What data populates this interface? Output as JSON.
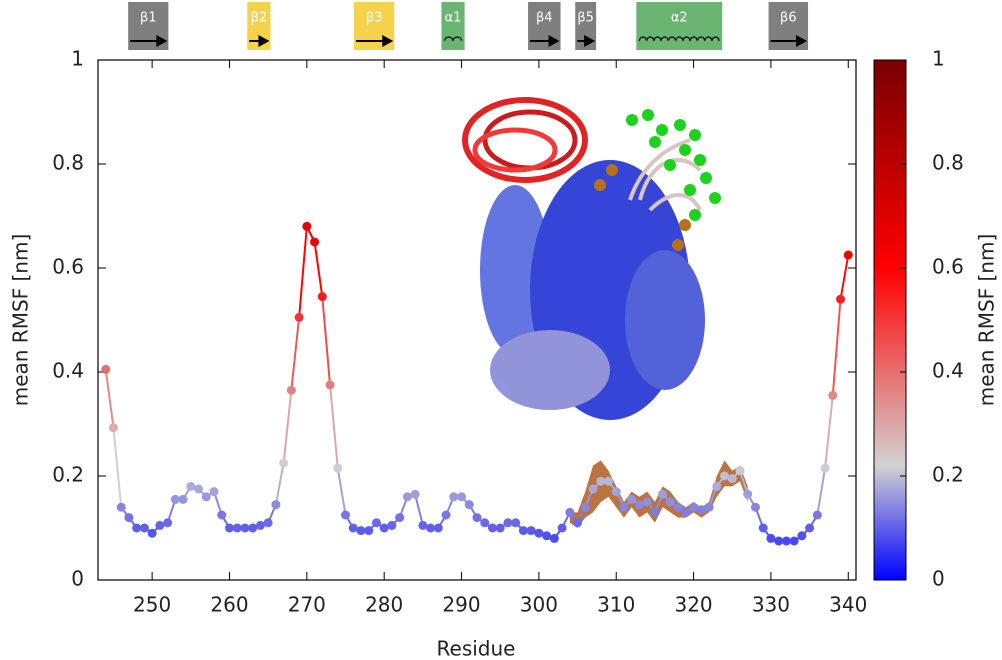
{
  "chart_data": {
    "type": "line",
    "xlabel": "Residue",
    "ylabel": "mean RMSF [nm]",
    "xlim": [
      243,
      341
    ],
    "ylim": [
      0,
      1
    ],
    "xticks": [
      250,
      260,
      270,
      280,
      290,
      300,
      310,
      320,
      330,
      340
    ],
    "yticks": [
      0,
      0.2,
      0.4,
      0.6,
      0.8,
      1
    ],
    "x": [
      244,
      245,
      246,
      247,
      248,
      249,
      250,
      251,
      252,
      253,
      254,
      255,
      256,
      257,
      258,
      259,
      260,
      261,
      262,
      263,
      264,
      265,
      266,
      267,
      268,
      269,
      270,
      271,
      272,
      273,
      274,
      275,
      276,
      277,
      278,
      279,
      280,
      281,
      282,
      283,
      284,
      285,
      286,
      287,
      288,
      289,
      290,
      291,
      292,
      293,
      294,
      295,
      296,
      297,
      298,
      299,
      300,
      301,
      302,
      303,
      304,
      305,
      306,
      307,
      308,
      309,
      310,
      311,
      312,
      313,
      314,
      315,
      316,
      317,
      318,
      319,
      320,
      321,
      322,
      323,
      324,
      325,
      326,
      327,
      328,
      329,
      330,
      331,
      332,
      333,
      334,
      335,
      336,
      337,
      338,
      339,
      340
    ],
    "values": [
      0.405,
      0.293,
      0.14,
      0.12,
      0.1,
      0.1,
      0.09,
      0.105,
      0.11,
      0.155,
      0.155,
      0.18,
      0.175,
      0.16,
      0.17,
      0.125,
      0.1,
      0.1,
      0.1,
      0.1,
      0.105,
      0.11,
      0.145,
      0.225,
      0.365,
      0.505,
      0.68,
      0.65,
      0.545,
      0.375,
      0.215,
      0.125,
      0.1,
      0.095,
      0.095,
      0.11,
      0.1,
      0.105,
      0.12,
      0.16,
      0.165,
      0.105,
      0.1,
      0.1,
      0.125,
      0.16,
      0.16,
      0.145,
      0.12,
      0.11,
      0.1,
      0.1,
      0.11,
      0.11,
      0.095,
      0.095,
      0.09,
      0.085,
      0.08,
      0.1,
      0.13,
      0.11,
      0.14,
      0.175,
      0.19,
      0.19,
      0.17,
      0.14,
      0.155,
      0.145,
      0.15,
      0.13,
      0.165,
      0.15,
      0.14,
      0.13,
      0.14,
      0.135,
      0.14,
      0.18,
      0.2,
      0.195,
      0.21,
      0.165,
      0.14,
      0.1,
      0.08,
      0.075,
      0.075,
      0.075,
      0.085,
      0.1,
      0.125,
      0.215,
      0.355,
      0.54,
      0.625
    ],
    "band": {
      "color": "#b5642a",
      "x": [
        304,
        305,
        306,
        307,
        308,
        309,
        310,
        311,
        312,
        313,
        314,
        315,
        316,
        317,
        318,
        319,
        320,
        321,
        322,
        323,
        324,
        325,
        326,
        327
      ],
      "upper": [
        0.13,
        0.13,
        0.17,
        0.22,
        0.23,
        0.21,
        0.18,
        0.15,
        0.17,
        0.16,
        0.17,
        0.15,
        0.18,
        0.17,
        0.15,
        0.14,
        0.15,
        0.14,
        0.15,
        0.2,
        0.23,
        0.21,
        0.22,
        0.18
      ],
      "lower": [
        0.11,
        0.1,
        0.12,
        0.13,
        0.15,
        0.16,
        0.14,
        0.12,
        0.14,
        0.12,
        0.13,
        0.11,
        0.14,
        0.13,
        0.12,
        0.12,
        0.13,
        0.12,
        0.13,
        0.16,
        0.18,
        0.18,
        0.19,
        0.15
      ]
    },
    "colormap": [
      {
        "value": 0,
        "color": "#0000ff"
      },
      {
        "value": 0.22,
        "color": "#d2d2d2"
      },
      {
        "value": 0.6,
        "color": "#ff0000"
      },
      {
        "value": 1,
        "color": "#7a0000"
      }
    ],
    "colorbar": {
      "label": "mean RMSF [nm]",
      "lim": [
        0,
        1
      ],
      "ticks": [
        0,
        0.2,
        0.4,
        0.6,
        0.8,
        1
      ]
    },
    "secondary_structure": [
      {
        "label": "β1",
        "start": 246.9,
        "end": 252.1,
        "color": "#7f7f7f",
        "kind": "strand"
      },
      {
        "label": "β2",
        "start": 262.3,
        "end": 265.3,
        "color": "#f5d24a",
        "kind": "strand"
      },
      {
        "label": "β3",
        "start": 276.1,
        "end": 281.3,
        "color": "#f5d24a",
        "kind": "strand"
      },
      {
        "label": "α1",
        "start": 287.4,
        "end": 290.4,
        "color": "#6bb573",
        "kind": "helix"
      },
      {
        "label": "β4",
        "start": 298.6,
        "end": 302.8,
        "color": "#7f7f7f",
        "kind": "strand"
      },
      {
        "label": "β5",
        "start": 304.7,
        "end": 307.4,
        "color": "#7f7f7f",
        "kind": "strand"
      },
      {
        "label": "α2",
        "start": 312.6,
        "end": 323.7,
        "color": "#6bb573",
        "kind": "helix"
      },
      {
        "label": "β6",
        "start": 329.7,
        "end": 334.8,
        "color": "#7f7f7f",
        "kind": "strand"
      }
    ]
  }
}
